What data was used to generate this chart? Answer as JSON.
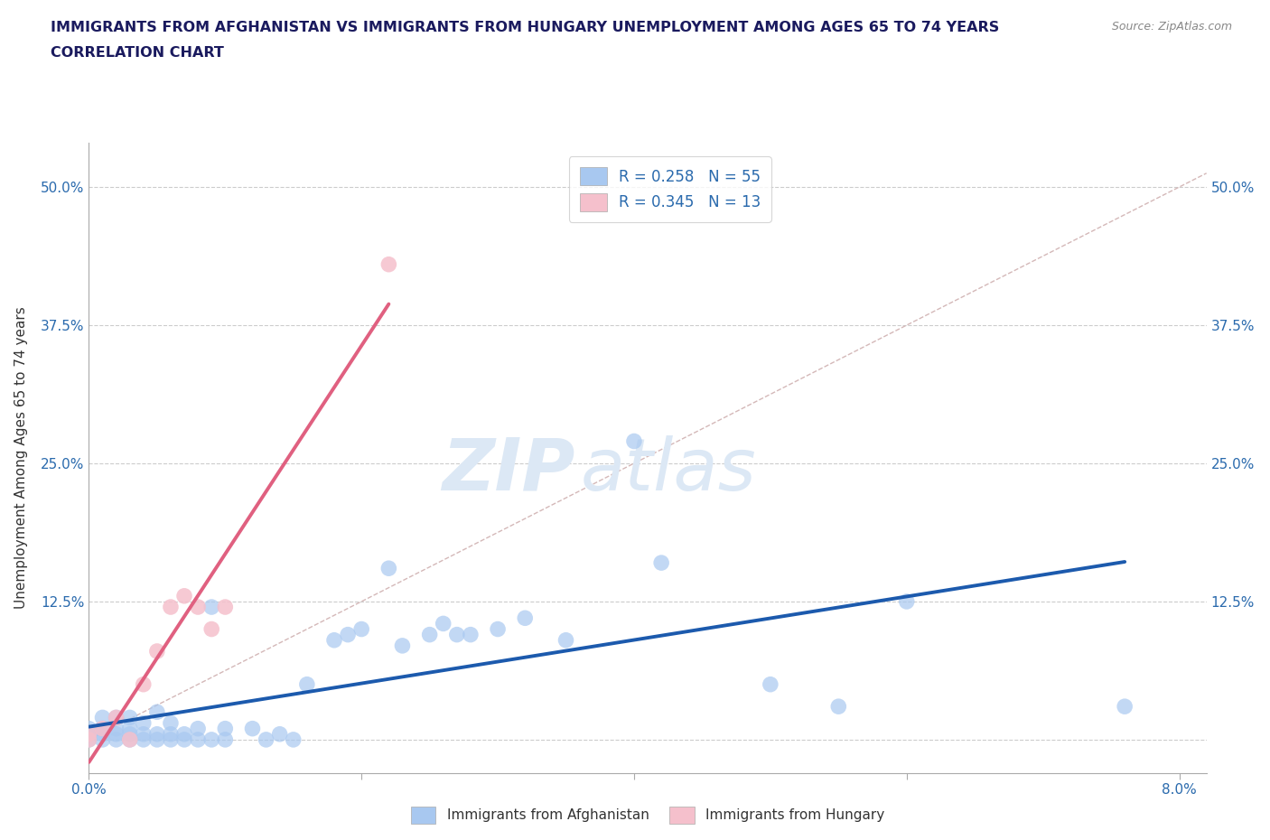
{
  "title_line1": "IMMIGRANTS FROM AFGHANISTAN VS IMMIGRANTS FROM HUNGARY UNEMPLOYMENT AMONG AGES 65 TO 74 YEARS",
  "title_line2": "CORRELATION CHART",
  "source_text": "Source: ZipAtlas.com",
  "ylabel": "Unemployment Among Ages 65 to 74 years",
  "xlim": [
    0.0,
    0.082
  ],
  "ylim": [
    -0.03,
    0.54
  ],
  "yticks": [
    0.0,
    0.125,
    0.25,
    0.375,
    0.5
  ],
  "ytick_labels": [
    "",
    "12.5%",
    "25.0%",
    "37.5%",
    "50.0%"
  ],
  "xticks": [
    0.0,
    0.02,
    0.04,
    0.06,
    0.08
  ],
  "xtick_labels": [
    "0.0%",
    "",
    "",
    "",
    "8.0%"
  ],
  "afghanistan_R": 0.258,
  "afghanistan_N": 55,
  "hungary_R": 0.345,
  "hungary_N": 13,
  "afghanistan_color": "#a8c8f0",
  "hungary_color": "#f5c0cc",
  "afghanistan_line_color": "#1c5aad",
  "hungary_line_color": "#e06080",
  "diagonal_color": "#d4b8b8",
  "background_color": "#ffffff",
  "grid_color": "#cccccc",
  "title_color": "#1a1a5e",
  "axis_label_color": "#2a6aad",
  "watermark_color": "#dce8f5",
  "afghanistan_x": [
    0.0,
    0.0,
    0.0,
    0.001,
    0.001,
    0.001,
    0.001,
    0.002,
    0.002,
    0.002,
    0.002,
    0.003,
    0.003,
    0.003,
    0.003,
    0.004,
    0.004,
    0.004,
    0.005,
    0.005,
    0.005,
    0.006,
    0.006,
    0.006,
    0.007,
    0.007,
    0.008,
    0.008,
    0.009,
    0.009,
    0.01,
    0.01,
    0.012,
    0.013,
    0.014,
    0.015,
    0.016,
    0.018,
    0.019,
    0.02,
    0.022,
    0.023,
    0.025,
    0.026,
    0.027,
    0.028,
    0.03,
    0.032,
    0.035,
    0.04,
    0.042,
    0.05,
    0.055,
    0.06,
    0.076
  ],
  "afghanistan_y": [
    0.0,
    0.005,
    0.01,
    0.0,
    0.005,
    0.01,
    0.02,
    0.0,
    0.005,
    0.01,
    0.02,
    0.0,
    0.005,
    0.01,
    0.02,
    0.0,
    0.005,
    0.015,
    0.0,
    0.005,
    0.025,
    0.0,
    0.005,
    0.015,
    0.0,
    0.005,
    0.0,
    0.01,
    0.0,
    0.12,
    0.0,
    0.01,
    0.01,
    0.0,
    0.005,
    0.0,
    0.05,
    0.09,
    0.095,
    0.1,
    0.155,
    0.085,
    0.095,
    0.105,
    0.095,
    0.095,
    0.1,
    0.11,
    0.09,
    0.27,
    0.16,
    0.05,
    0.03,
    0.125,
    0.03
  ],
  "hungary_x": [
    0.0,
    0.0,
    0.001,
    0.002,
    0.003,
    0.004,
    0.005,
    0.006,
    0.007,
    0.008,
    0.009,
    0.01,
    0.022
  ],
  "hungary_y": [
    0.0,
    0.005,
    0.01,
    0.02,
    0.0,
    0.05,
    0.08,
    0.12,
    0.13,
    0.12,
    0.1,
    0.12,
    0.43
  ]
}
